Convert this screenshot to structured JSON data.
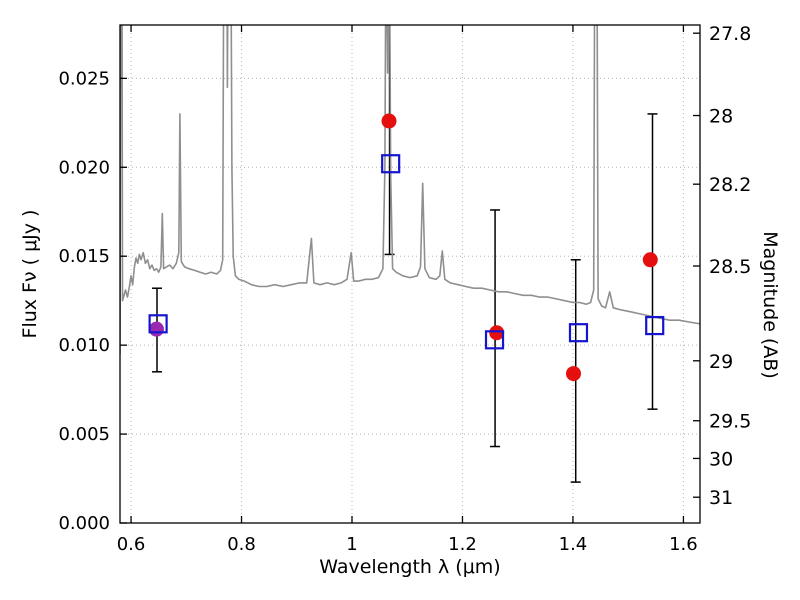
{
  "chart_data": {
    "type": "line",
    "title": "",
    "xlabel": "Wavelength  λ (μm)",
    "ylabel_left": "Flux  Fν  ( μJy )",
    "ylabel_right": "Magnitude (AB)",
    "xlim": [
      0.58,
      1.63
    ],
    "ylim": [
      0,
      0.028
    ],
    "grid": "dotted",
    "legend": "none",
    "x_ticks": [
      0.6,
      0.8,
      1.0,
      1.2,
      1.4,
      1.6
    ],
    "x_tick_labels": [
      "0.6",
      "0.8",
      "1",
      "1.2",
      "1.4",
      "1.6"
    ],
    "y_ticks_left": [
      0,
      0.005,
      0.01,
      0.015,
      0.02,
      0.025
    ],
    "y_tick_labels_left": [
      "0.000",
      "0.005",
      "0.010",
      "0.015",
      "0.020",
      "0.025"
    ],
    "y_ticks_right": [
      {
        "label": "27.8",
        "flux": 0.02754
      },
      {
        "label": "28",
        "flux": 0.02291
      },
      {
        "label": "28.2",
        "flux": 0.01905
      },
      {
        "label": "28.5",
        "flux": 0.01445
      },
      {
        "label": "29",
        "flux": 0.00912
      },
      {
        "label": "29.5",
        "flux": 0.00575
      },
      {
        "label": "30",
        "flux": 0.00363
      },
      {
        "label": "31",
        "flux": 0.00145
      }
    ],
    "error_bars": [
      {
        "x": 0.647,
        "lo": 0.0085,
        "hi": 0.0132
      },
      {
        "x": 1.068,
        "lo": 0.0151,
        "hi": 0.0295
      },
      {
        "x": 1.259,
        "lo": 0.0043,
        "hi": 0.0176
      },
      {
        "x": 1.405,
        "lo": 0.0023,
        "hi": 0.0148
      },
      {
        "x": 1.544,
        "lo": 0.0064,
        "hi": 0.023
      }
    ],
    "series": [
      {
        "name": "model-spectrum-line",
        "kind": "line",
        "color": "#8f8f8f",
        "width": 1.6,
        "points": [
          [
            0.58,
            0.0095
          ],
          [
            0.5815,
            0.032
          ],
          [
            0.583,
            0.042
          ],
          [
            0.5845,
            0.0125
          ],
          [
            0.59,
            0.0131
          ],
          [
            0.5935,
            0.0127
          ],
          [
            0.597,
            0.0133
          ],
          [
            0.6,
            0.0139
          ],
          [
            0.603,
            0.0134
          ],
          [
            0.606,
            0.0144
          ],
          [
            0.609,
            0.0149
          ],
          [
            0.612,
            0.0146
          ],
          [
            0.615,
            0.0151
          ],
          [
            0.618,
            0.0148
          ],
          [
            0.622,
            0.0152
          ],
          [
            0.626,
            0.0146
          ],
          [
            0.63,
            0.0148
          ],
          [
            0.634,
            0.0143
          ],
          [
            0.638,
            0.0145
          ],
          [
            0.642,
            0.0142
          ],
          [
            0.646,
            0.0143
          ],
          [
            0.65,
            0.0141
          ],
          [
            0.654,
            0.0144
          ],
          [
            0.6565,
            0.0174
          ],
          [
            0.659,
            0.0143
          ],
          [
            0.664,
            0.0144
          ],
          [
            0.67,
            0.0145
          ],
          [
            0.676,
            0.0143
          ],
          [
            0.682,
            0.0146
          ],
          [
            0.6865,
            0.0152
          ],
          [
            0.6885,
            0.023
          ],
          [
            0.691,
            0.0147
          ],
          [
            0.697,
            0.0144
          ],
          [
            0.705,
            0.0143
          ],
          [
            0.715,
            0.0142
          ],
          [
            0.725,
            0.0141
          ],
          [
            0.735,
            0.014
          ],
          [
            0.745,
            0.0141
          ],
          [
            0.755,
            0.014
          ],
          [
            0.762,
            0.0142
          ],
          [
            0.766,
            0.0148
          ],
          [
            0.7685,
            0.038
          ],
          [
            0.772,
            0.042
          ],
          [
            0.7745,
            0.0245
          ],
          [
            0.777,
            0.042
          ],
          [
            0.78,
            0.038
          ],
          [
            0.7825,
            0.02
          ],
          [
            0.785,
            0.015
          ],
          [
            0.789,
            0.0139
          ],
          [
            0.795,
            0.0137
          ],
          [
            0.805,
            0.0136
          ],
          [
            0.818,
            0.0134
          ],
          [
            0.832,
            0.0133
          ],
          [
            0.846,
            0.0133
          ],
          [
            0.86,
            0.0134
          ],
          [
            0.875,
            0.0133
          ],
          [
            0.89,
            0.0134
          ],
          [
            0.905,
            0.0135
          ],
          [
            0.918,
            0.0135
          ],
          [
            0.9265,
            0.016
          ],
          [
            0.931,
            0.0135
          ],
          [
            0.942,
            0.0134
          ],
          [
            0.955,
            0.0135
          ],
          [
            0.968,
            0.0134
          ],
          [
            0.98,
            0.0135
          ],
          [
            0.991,
            0.0137
          ],
          [
            0.9985,
            0.0152
          ],
          [
            1.003,
            0.0136
          ],
          [
            1.012,
            0.0136
          ],
          [
            1.024,
            0.0137
          ],
          [
            1.036,
            0.0137
          ],
          [
            1.048,
            0.0138
          ],
          [
            1.056,
            0.0143
          ],
          [
            1.0595,
            0.02
          ],
          [
            1.0615,
            0.034
          ],
          [
            1.0645,
            0.0253
          ],
          [
            1.0675,
            0.034
          ],
          [
            1.07,
            0.0195
          ],
          [
            1.0735,
            0.0143
          ],
          [
            1.08,
            0.0141
          ],
          [
            1.092,
            0.0139
          ],
          [
            1.105,
            0.0138
          ],
          [
            1.118,
            0.0139
          ],
          [
            1.124,
            0.0144
          ],
          [
            1.128,
            0.0191
          ],
          [
            1.132,
            0.0143
          ],
          [
            1.14,
            0.0138
          ],
          [
            1.152,
            0.0137
          ],
          [
            1.159,
            0.0139
          ],
          [
            1.1635,
            0.0153
          ],
          [
            1.168,
            0.0137
          ],
          [
            1.178,
            0.0135
          ],
          [
            1.192,
            0.0134
          ],
          [
            1.206,
            0.0133
          ],
          [
            1.22,
            0.0132
          ],
          [
            1.235,
            0.0132
          ],
          [
            1.25,
            0.0131
          ],
          [
            1.265,
            0.013
          ],
          [
            1.28,
            0.013
          ],
          [
            1.295,
            0.0129
          ],
          [
            1.31,
            0.0128
          ],
          [
            1.325,
            0.0128
          ],
          [
            1.34,
            0.0127
          ],
          [
            1.355,
            0.0127
          ],
          [
            1.37,
            0.0126
          ],
          [
            1.385,
            0.0125
          ],
          [
            1.4,
            0.0124
          ],
          [
            1.412,
            0.0124
          ],
          [
            1.424,
            0.0123
          ],
          [
            1.432,
            0.0124
          ],
          [
            1.4375,
            0.0131
          ],
          [
            1.44,
            0.038
          ],
          [
            1.4425,
            0.042
          ],
          [
            1.4455,
            0.0126
          ],
          [
            1.452,
            0.0122
          ],
          [
            1.459,
            0.0121
          ],
          [
            1.4665,
            0.013
          ],
          [
            1.473,
            0.0121
          ],
          [
            1.485,
            0.012
          ],
          [
            1.5,
            0.0119
          ],
          [
            1.515,
            0.0118
          ],
          [
            1.53,
            0.0117
          ],
          [
            1.545,
            0.0116
          ],
          [
            1.56,
            0.0115
          ],
          [
            1.575,
            0.0114
          ],
          [
            1.592,
            0.0114
          ],
          [
            1.61,
            0.0113
          ],
          [
            1.63,
            0.0112
          ]
        ]
      },
      {
        "name": "red-photometry-points",
        "kind": "scatter",
        "marker": "circle",
        "color": "#e50f0f",
        "size": 7.5,
        "points": [
          [
            1.067,
            0.0226
          ],
          [
            1.262,
            0.0107
          ],
          [
            1.401,
            0.0084
          ],
          [
            1.54,
            0.0148
          ]
        ]
      },
      {
        "name": "purple-photometry-point",
        "kind": "scatter",
        "marker": "circle",
        "color": "#9b28b1",
        "size": 7.5,
        "points": [
          [
            0.646,
            0.0109
          ]
        ]
      },
      {
        "name": "blue-square-photometry-points",
        "kind": "scatter",
        "marker": "square-open",
        "color": "#1515cf",
        "size": 8.5,
        "points": [
          [
            0.649,
            0.0112
          ],
          [
            1.07,
            0.0202
          ],
          [
            1.258,
            0.0103
          ],
          [
            1.41,
            0.0107
          ],
          [
            1.548,
            0.0111
          ]
        ]
      }
    ]
  }
}
